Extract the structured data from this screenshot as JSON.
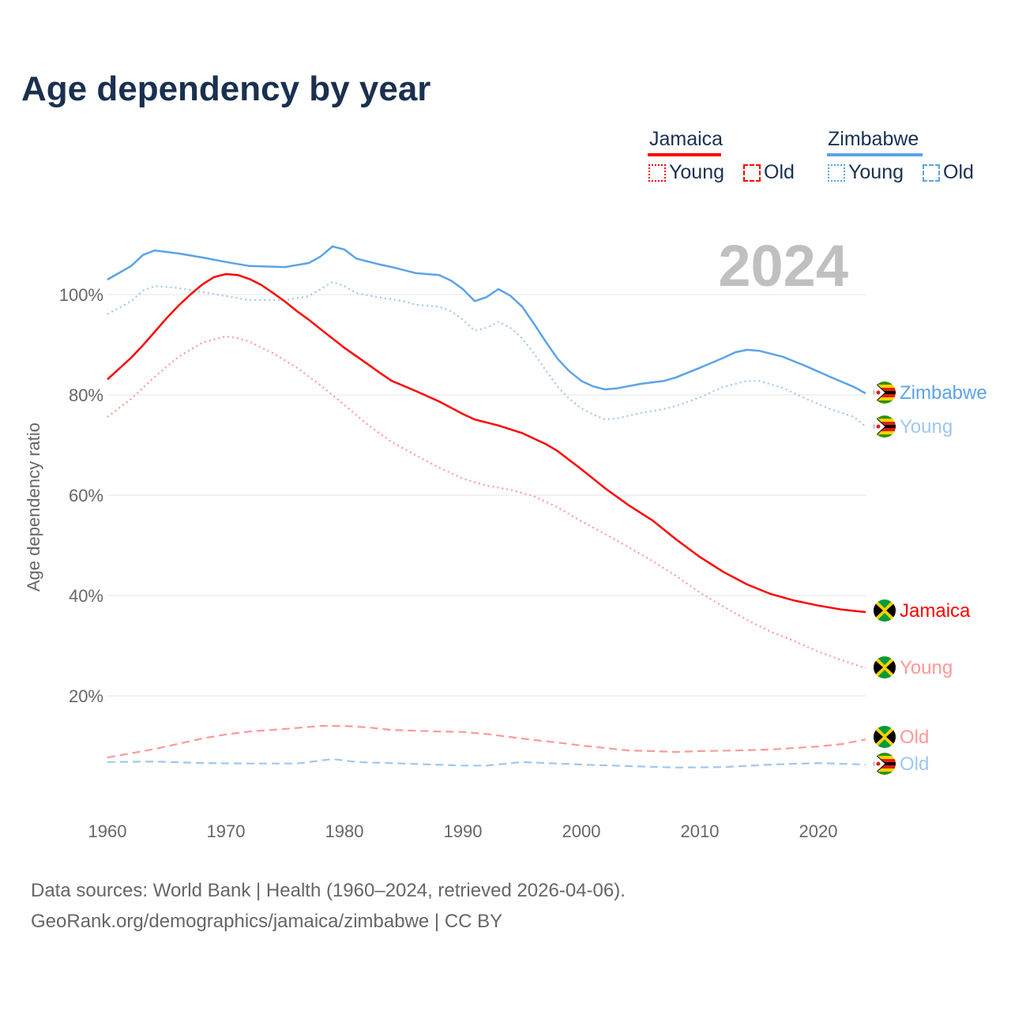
{
  "title": "Age dependency by year",
  "legend": {
    "groups": [
      {
        "country": "Jamaica",
        "color": "#ff0000",
        "items": [
          "Young",
          "Old"
        ]
      },
      {
        "country": "Zimbabwe",
        "color": "#5ba3e8",
        "items": [
          "Young",
          "Old"
        ]
      }
    ]
  },
  "footer": {
    "line1": "Data sources: World Bank | Health (1960–2024, retrieved 2026-04-06).",
    "line2": "GeoRank.org/demographics/jamaica/zimbabwe | CC BY"
  },
  "chart_data": {
    "type": "line",
    "title": "Age dependency by year",
    "ylabel": "Age dependency ratio",
    "xlabel": "",
    "year_label": "2024",
    "xlim": [
      1960,
      2024
    ],
    "ylim": [
      0,
      110
    ],
    "x_ticks": [
      "1960",
      "1970",
      "1980",
      "1990",
      "2000",
      "2010",
      "2020"
    ],
    "y_ticks": [
      "20%",
      "40%",
      "60%",
      "80%",
      "100%"
    ],
    "grid": true,
    "series": [
      {
        "name": "Zimbabwe",
        "end_label": "Zimbabwe",
        "color": "#5ba3e8",
        "style": "solid",
        "flag": "zimbabwe",
        "points": [
          [
            1960,
            103
          ],
          [
            1962,
            105.7
          ],
          [
            1963,
            107.9
          ],
          [
            1964,
            108.8
          ],
          [
            1966,
            108.2
          ],
          [
            1968,
            107.4
          ],
          [
            1970,
            106.5
          ],
          [
            1972,
            105.7
          ],
          [
            1975,
            105.5
          ],
          [
            1977,
            106.3
          ],
          [
            1978,
            107.6
          ],
          [
            1979,
            109.6
          ],
          [
            1980,
            109
          ],
          [
            1981,
            107.2
          ],
          [
            1983,
            106
          ],
          [
            1984,
            105.5
          ],
          [
            1986,
            104.3
          ],
          [
            1988,
            103.9
          ],
          [
            1989,
            102.8
          ],
          [
            1990,
            101.1
          ],
          [
            1991,
            98.7
          ],
          [
            1992,
            99.5
          ],
          [
            1993,
            101.1
          ],
          [
            1994,
            99.8
          ],
          [
            1995,
            97.6
          ],
          [
            1996,
            94.2
          ],
          [
            1997,
            90.6
          ],
          [
            1998,
            87.2
          ],
          [
            1999,
            84.7
          ],
          [
            2000,
            82.8
          ],
          [
            2001,
            81.7
          ],
          [
            2002,
            81.1
          ],
          [
            2003,
            81.3
          ],
          [
            2005,
            82.2
          ],
          [
            2007,
            82.8
          ],
          [
            2008,
            83.5
          ],
          [
            2010,
            85.4
          ],
          [
            2012,
            87.4
          ],
          [
            2013,
            88.5
          ],
          [
            2014,
            89
          ],
          [
            2015,
            88.8
          ],
          [
            2017,
            87.6
          ],
          [
            2019,
            85.7
          ],
          [
            2021,
            83.6
          ],
          [
            2023,
            81.6
          ],
          [
            2024,
            80.3
          ]
        ]
      },
      {
        "name": "Zimbabwe Young",
        "end_label": "Young",
        "color": "#9fc7ef",
        "style": "dotted",
        "flag": "zimbabwe",
        "points": [
          [
            1960,
            96.1
          ],
          [
            1962,
            98.7
          ],
          [
            1963,
            100.8
          ],
          [
            1964,
            101.7
          ],
          [
            1966,
            101.3
          ],
          [
            1968,
            100.5
          ],
          [
            1970,
            99.7
          ],
          [
            1972,
            98.9
          ],
          [
            1975,
            98.9
          ],
          [
            1977,
            99.7
          ],
          [
            1979,
            102.5
          ],
          [
            1980,
            101.7
          ],
          [
            1981,
            100.3
          ],
          [
            1983,
            99.4
          ],
          [
            1985,
            98.7
          ],
          [
            1986,
            98
          ],
          [
            1988,
            97.6
          ],
          [
            1989,
            96.7
          ],
          [
            1990,
            95
          ],
          [
            1991,
            92.8
          ],
          [
            1992,
            93.4
          ],
          [
            1993,
            94.6
          ],
          [
            1994,
            93.4
          ],
          [
            1995,
            91.3
          ],
          [
            1996,
            88.3
          ],
          [
            1997,
            84.9
          ],
          [
            1998,
            81.6
          ],
          [
            1999,
            79.2
          ],
          [
            2000,
            77.3
          ],
          [
            2001,
            76.1
          ],
          [
            2002,
            75.1
          ],
          [
            2003,
            75.3
          ],
          [
            2005,
            76.4
          ],
          [
            2007,
            77.2
          ],
          [
            2008,
            77.8
          ],
          [
            2010,
            79.5
          ],
          [
            2012,
            81.6
          ],
          [
            2014,
            82.8
          ],
          [
            2015,
            82.8
          ],
          [
            2017,
            81.4
          ],
          [
            2019,
            79.2
          ],
          [
            2021,
            77.2
          ],
          [
            2023,
            75.6
          ],
          [
            2024,
            73.7
          ]
        ]
      },
      {
        "name": "Jamaica",
        "end_label": "Jamaica",
        "color": "#ff0000",
        "style": "solid",
        "flag": "jamaica",
        "points": [
          [
            1960,
            83.1
          ],
          [
            1962,
            87.4
          ],
          [
            1963,
            89.9
          ],
          [
            1964,
            92.6
          ],
          [
            1965,
            95.3
          ],
          [
            1966,
            97.8
          ],
          [
            1967,
            100
          ],
          [
            1968,
            102
          ],
          [
            1969,
            103.5
          ],
          [
            1970,
            104.1
          ],
          [
            1971,
            103.9
          ],
          [
            1972,
            103.1
          ],
          [
            1973,
            101.9
          ],
          [
            1974,
            100.3
          ],
          [
            1975,
            98.6
          ],
          [
            1976,
            96.7
          ],
          [
            1977,
            95
          ],
          [
            1978,
            93.1
          ],
          [
            1980,
            89.4
          ],
          [
            1982,
            86.1
          ],
          [
            1983,
            84.4
          ],
          [
            1984,
            82.8
          ],
          [
            1986,
            80.8
          ],
          [
            1988,
            78.7
          ],
          [
            1990,
            76.2
          ],
          [
            1991,
            75.1
          ],
          [
            1993,
            73.9
          ],
          [
            1995,
            72.4
          ],
          [
            1996,
            71.3
          ],
          [
            1997,
            70.2
          ],
          [
            1998,
            68.8
          ],
          [
            2000,
            65.2
          ],
          [
            2002,
            61.4
          ],
          [
            2004,
            58
          ],
          [
            2006,
            55
          ],
          [
            2008,
            51.2
          ],
          [
            2010,
            47.7
          ],
          [
            2012,
            44.7
          ],
          [
            2014,
            42.2
          ],
          [
            2016,
            40.3
          ],
          [
            2018,
            39
          ],
          [
            2020,
            38
          ],
          [
            2022,
            37.2
          ],
          [
            2024,
            36.7
          ]
        ]
      },
      {
        "name": "Jamaica Young",
        "end_label": "Young",
        "color": "#ff9999",
        "style": "dotted",
        "flag": "jamaica",
        "points": [
          [
            1960,
            75.6
          ],
          [
            1962,
            79.2
          ],
          [
            1964,
            83.6
          ],
          [
            1966,
            87.6
          ],
          [
            1968,
            90.4
          ],
          [
            1970,
            91.7
          ],
          [
            1971,
            91.3
          ],
          [
            1972,
            90.6
          ],
          [
            1974,
            88.3
          ],
          [
            1976,
            85.4
          ],
          [
            1978,
            81.9
          ],
          [
            1980,
            78
          ],
          [
            1982,
            74
          ],
          [
            1984,
            70.6
          ],
          [
            1986,
            68
          ],
          [
            1988,
            65.5
          ],
          [
            1990,
            63.3
          ],
          [
            1992,
            61.9
          ],
          [
            1994,
            61.1
          ],
          [
            1996,
            59.8
          ],
          [
            1998,
            57.6
          ],
          [
            2000,
            54.8
          ],
          [
            2002,
            52.3
          ],
          [
            2004,
            49.6
          ],
          [
            2006,
            46.9
          ],
          [
            2008,
            43.9
          ],
          [
            2010,
            40.6
          ],
          [
            2012,
            37.8
          ],
          [
            2014,
            35.1
          ],
          [
            2016,
            32.8
          ],
          [
            2018,
            30.9
          ],
          [
            2020,
            28.8
          ],
          [
            2022,
            27.1
          ],
          [
            2024,
            25.5
          ]
        ]
      },
      {
        "name": "Jamaica Old",
        "end_label": "Old",
        "color": "#ff9999",
        "style": "dashed",
        "flag": "jamaica",
        "points": [
          [
            1960,
            7.7
          ],
          [
            1964,
            9.4
          ],
          [
            1968,
            11.5
          ],
          [
            1970,
            12.3
          ],
          [
            1972,
            12.9
          ],
          [
            1975,
            13.4
          ],
          [
            1978,
            14
          ],
          [
            1980,
            14
          ],
          [
            1982,
            13.7
          ],
          [
            1984,
            13.2
          ],
          [
            1988,
            12.9
          ],
          [
            1990,
            12.8
          ],
          [
            1992,
            12.4
          ],
          [
            1994,
            11.8
          ],
          [
            1996,
            11.2
          ],
          [
            1998,
            10.7
          ],
          [
            2000,
            10.1
          ],
          [
            2002,
            9.6
          ],
          [
            2004,
            9.1
          ],
          [
            2006,
            9
          ],
          [
            2008,
            8.8
          ],
          [
            2010,
            9
          ],
          [
            2013,
            9.1
          ],
          [
            2016,
            9.3
          ],
          [
            2018,
            9.6
          ],
          [
            2020,
            9.9
          ],
          [
            2022,
            10.4
          ],
          [
            2024,
            11.3
          ]
        ]
      },
      {
        "name": "Zimbabwe Old",
        "end_label": "Old",
        "color": "#9fc7ef",
        "style": "dashed",
        "flag": "zimbabwe",
        "points": [
          [
            1960,
            6.8
          ],
          [
            1964,
            6.9
          ],
          [
            1968,
            6.6
          ],
          [
            1972,
            6.5
          ],
          [
            1976,
            6.5
          ],
          [
            1979,
            7.4
          ],
          [
            1981,
            6.8
          ],
          [
            1985,
            6.5
          ],
          [
            1990,
            6.1
          ],
          [
            1992,
            6.1
          ],
          [
            1995,
            6.8
          ],
          [
            1997,
            6.6
          ],
          [
            2000,
            6.3
          ],
          [
            2004,
            6
          ],
          [
            2008,
            5.7
          ],
          [
            2012,
            5.8
          ],
          [
            2016,
            6.3
          ],
          [
            2020,
            6.6
          ],
          [
            2024,
            6.3
          ]
        ]
      }
    ]
  }
}
